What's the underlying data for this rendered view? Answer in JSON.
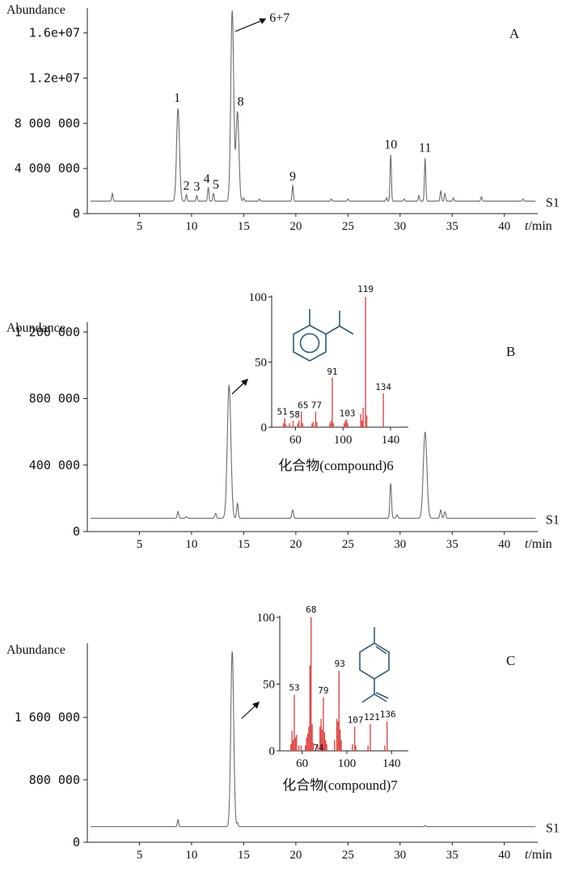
{
  "chart_data": [
    {
      "type": "line",
      "panel_label": "A",
      "ylabel": "Abundance",
      "xlabel": "t/min",
      "xlim": [
        0,
        43.2
      ],
      "ylim": [
        0,
        18200000
      ],
      "x_ticks": [
        5,
        10,
        15,
        20,
        25,
        30,
        35,
        40
      ],
      "y_ticks": [
        {
          "value": 0,
          "label": "0"
        },
        {
          "value": 4000000,
          "label": "4 000 000"
        },
        {
          "value": 8000000,
          "label": "8 000 000"
        },
        {
          "value": 12000000,
          "label": "1.2e+07"
        },
        {
          "value": 16000000,
          "label": "1.6e+07"
        }
      ],
      "series_label": "S1",
      "baseline": 1100000,
      "peaks": [
        {
          "x": 2.4,
          "y": 1800000
        },
        {
          "x": 8.7,
          "y": 9300000,
          "label": "1"
        },
        {
          "x": 9.5,
          "y": 1700000,
          "label": "2"
        },
        {
          "x": 10.5,
          "y": 1600000,
          "label": "3"
        },
        {
          "x": 11.6,
          "y": 2300000,
          "label": "4"
        },
        {
          "x": 12.1,
          "y": 1800000,
          "label": "5"
        },
        {
          "x": 13.9,
          "y": 18000000
        },
        {
          "x": 14.4,
          "y": 9000000,
          "label": "8"
        },
        {
          "x": 15.0,
          "y": 1400000
        },
        {
          "x": 16.5,
          "y": 1300000
        },
        {
          "x": 19.7,
          "y": 2500000,
          "label": "9"
        },
        {
          "x": 23.4,
          "y": 1300000
        },
        {
          "x": 25.0,
          "y": 1300000
        },
        {
          "x": 28.7,
          "y": 1400000
        },
        {
          "x": 29.1,
          "y": 5200000,
          "label": "10"
        },
        {
          "x": 30.4,
          "y": 1300000
        },
        {
          "x": 31.8,
          "y": 1600000
        },
        {
          "x": 32.4,
          "y": 4900000,
          "label": "11"
        },
        {
          "x": 33.9,
          "y": 2000000
        },
        {
          "x": 34.3,
          "y": 1800000
        },
        {
          "x": 35.1,
          "y": 1400000
        },
        {
          "x": 37.8,
          "y": 1500000
        },
        {
          "x": 41.8,
          "y": 1300000
        }
      ],
      "annotations": [
        {
          "text": "6+7",
          "x": 13.9,
          "y": 18000000
        }
      ]
    },
    {
      "type": "line",
      "panel_label": "B",
      "ylabel": "Abundance",
      "xlabel": "t/min",
      "xlim": [
        0,
        43.2
      ],
      "ylim": [
        0,
        1260000
      ],
      "x_ticks": [
        5,
        10,
        15,
        20,
        25,
        30,
        35,
        40
      ],
      "y_ticks": [
        {
          "value": 0,
          "label": "0"
        },
        {
          "value": 400000,
          "label": "400 000"
        },
        {
          "value": 800000,
          "label": "800 000"
        },
        {
          "value": 1200000,
          "label": "1 200 000"
        }
      ],
      "series_label": "S1",
      "baseline": 80000,
      "peaks": [
        {
          "x": 8.7,
          "y": 120000
        },
        {
          "x": 9.5,
          "y": 90000
        },
        {
          "x": 12.3,
          "y": 110000
        },
        {
          "x": 13.6,
          "y": 880000
        },
        {
          "x": 14.4,
          "y": 170000
        },
        {
          "x": 19.7,
          "y": 130000
        },
        {
          "x": 29.1,
          "y": 290000
        },
        {
          "x": 29.7,
          "y": 100000
        },
        {
          "x": 32.4,
          "y": 600000
        },
        {
          "x": 33.9,
          "y": 130000
        },
        {
          "x": 34.3,
          "y": 120000
        }
      ]
    },
    {
      "type": "line",
      "panel_label": "C",
      "ylabel": "Abundance",
      "xlabel": "t/min",
      "xlim": [
        0,
        43.2
      ],
      "ylim": [
        0,
        2550000
      ],
      "x_ticks": [
        5,
        10,
        15,
        20,
        25,
        30,
        35,
        40
      ],
      "y_ticks": [
        {
          "value": 0,
          "label": "0"
        },
        {
          "value": 800000,
          "label": "800 000"
        },
        {
          "value": 1600000,
          "label": "1 600 000"
        }
      ],
      "series_label": "S1",
      "baseline": 200000,
      "peaks": [
        {
          "x": 8.7,
          "y": 290000
        },
        {
          "x": 13.9,
          "y": 2450000
        },
        {
          "x": 14.4,
          "y": 250000
        },
        {
          "x": 32.4,
          "y": 215000
        }
      ]
    },
    {
      "type": "bar",
      "title": "化合物(compound)6",
      "xlim": [
        40,
        155
      ],
      "ylim": [
        0,
        100
      ],
      "x_ticks": [
        60,
        100,
        140
      ],
      "y_ticks": [
        0,
        50,
        100
      ],
      "x": [
        50,
        51,
        52,
        55,
        58,
        62,
        63,
        65,
        66,
        74,
        75,
        77,
        78,
        89,
        90,
        91,
        92,
        101,
        102,
        103,
        104,
        115,
        116,
        117,
        119,
        120,
        134
      ],
      "values": [
        3,
        7,
        2,
        3,
        5,
        3,
        5,
        12,
        3,
        3,
        4,
        12,
        4,
        3,
        5,
        38,
        3,
        3,
        5,
        6,
        3,
        10,
        5,
        15,
        100,
        9,
        26
      ],
      "peak_labels": [
        {
          "mz": 51,
          "text": "51"
        },
        {
          "mz": 58,
          "text": "58"
        },
        {
          "mz": 65,
          "text": "65"
        },
        {
          "mz": 77,
          "text": "77"
        },
        {
          "mz": 91,
          "text": "91"
        },
        {
          "mz": 103,
          "text": "103"
        },
        {
          "mz": 119,
          "text": "119"
        },
        {
          "mz": 134,
          "text": "134"
        }
      ]
    },
    {
      "type": "bar",
      "title": "化合物(compound)7",
      "xlim": [
        40,
        155
      ],
      "ylim": [
        0,
        100
      ],
      "x_ticks": [
        60,
        100,
        140
      ],
      "y_ticks": [
        0,
        50,
        100
      ],
      "x": [
        50,
        51,
        52,
        53,
        54,
        55,
        57,
        59,
        63,
        64,
        65,
        66,
        67,
        68,
        69,
        70,
        74,
        76,
        77,
        78,
        79,
        80,
        81,
        82,
        89,
        91,
        92,
        93,
        94,
        95,
        105,
        107,
        108,
        119,
        121,
        134,
        136
      ],
      "values": [
        5,
        15,
        8,
        42,
        10,
        12,
        4,
        4,
        4,
        10,
        13,
        18,
        64,
        100,
        20,
        6,
        5,
        18,
        24,
        16,
        40,
        14,
        8,
        5,
        8,
        24,
        22,
        60,
        16,
        8,
        5,
        18,
        4,
        4,
        20,
        4,
        22
      ],
      "peak_labels": [
        {
          "mz": 53,
          "text": "53"
        },
        {
          "mz": 68,
          "text": "68"
        },
        {
          "mz": 74,
          "text": "74"
        },
        {
          "mz": 79,
          "text": "79"
        },
        {
          "mz": 93,
          "text": "93"
        },
        {
          "mz": 107,
          "text": "107"
        },
        {
          "mz": 121,
          "text": "121"
        },
        {
          "mz": 136,
          "text": "136"
        }
      ]
    }
  ]
}
